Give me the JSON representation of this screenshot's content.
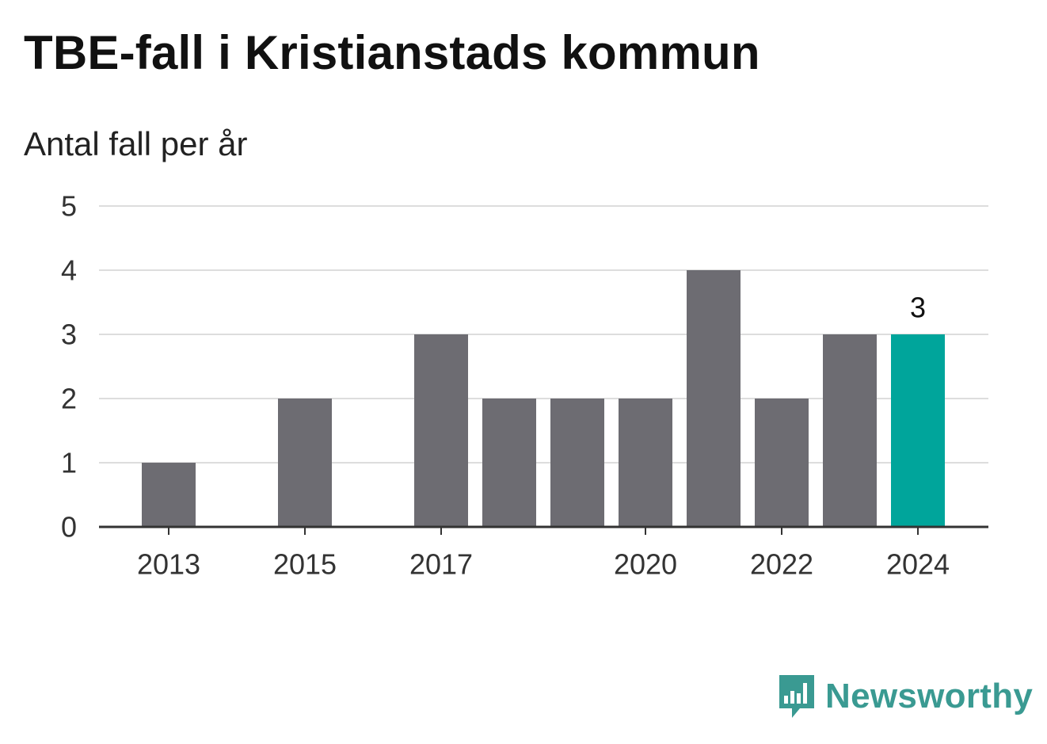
{
  "header": {
    "title": "TBE-fall i Kristianstads kommun",
    "subtitle": "Antal fall per år"
  },
  "brand": {
    "name": "Newsworthy",
    "icon": "bar-chart-speech-bubble-icon",
    "color": "#3a9a92"
  },
  "colors": {
    "bar": "#6d6c72",
    "highlight": "#00a59b",
    "grid": "#dddddd",
    "axis": "#333333"
  },
  "chart_data": {
    "type": "bar",
    "categories": [
      "2013",
      "2014",
      "2015",
      "2016",
      "2017",
      "2018",
      "2019",
      "2020",
      "2021",
      "2022",
      "2023",
      "2024"
    ],
    "values": [
      1,
      0,
      2,
      0,
      3,
      2,
      2,
      2,
      4,
      2,
      3,
      3
    ],
    "x_tick_labels": [
      "2013",
      "2015",
      "2017",
      "2020",
      "2022",
      "2024"
    ],
    "y_ticks": [
      0,
      1,
      2,
      3,
      4,
      5
    ],
    "ylim": [
      0,
      5
    ],
    "grid": true,
    "highlight_category": "2024",
    "data_labels": [
      {
        "category": "2024",
        "text": "3"
      }
    ]
  }
}
